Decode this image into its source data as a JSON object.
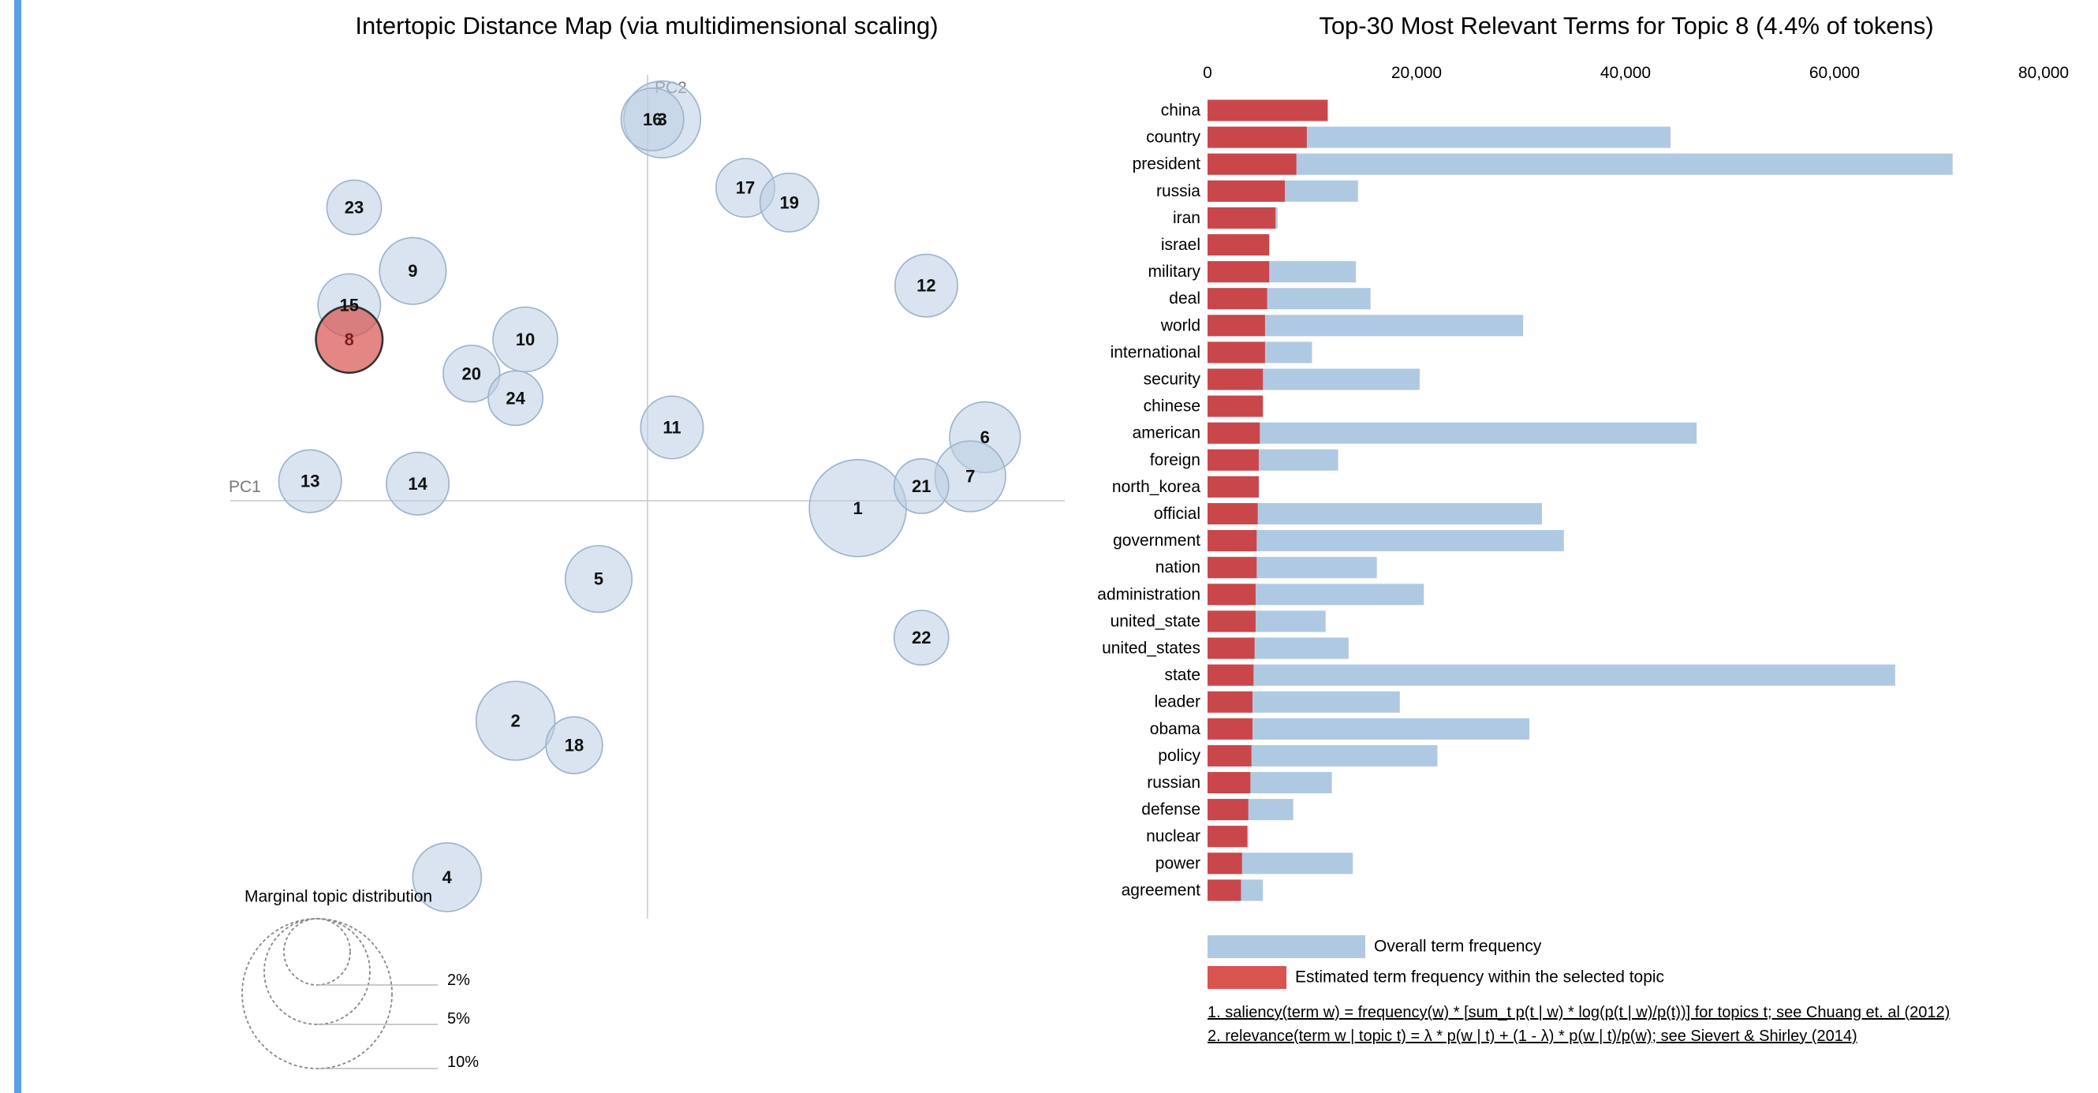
{
  "chart_data": [
    {
      "type": "scatter",
      "title": "Intertopic Distance Map (via multidimensional scaling)",
      "xlabel": "PC1",
      "ylabel": "PC2",
      "selected_topic": 8,
      "topics": [
        {
          "id": 1,
          "x": 4.3,
          "y": -0.15,
          "size": 4.8
        },
        {
          "id": 2,
          "x": -2.7,
          "y": -4.5,
          "size": 3.9
        },
        {
          "id": 3,
          "x": 0.3,
          "y": 7.8,
          "size": 3.8
        },
        {
          "id": 4,
          "x": -4.1,
          "y": -7.7,
          "size": 3.4
        },
        {
          "id": 5,
          "x": -1.0,
          "y": -1.6,
          "size": 3.3
        },
        {
          "id": 6,
          "x": 6.9,
          "y": 1.3,
          "size": 3.5
        },
        {
          "id": 7,
          "x": 6.6,
          "y": 0.5,
          "size": 3.5
        },
        {
          "id": 8,
          "x": -6.1,
          "y": 3.3,
          "size": 3.3
        },
        {
          "id": 9,
          "x": -4.8,
          "y": 4.7,
          "size": 3.3
        },
        {
          "id": 10,
          "x": -2.5,
          "y": 3.3,
          "size": 3.2
        },
        {
          "id": 11,
          "x": 0.5,
          "y": 1.5,
          "size": 3.1
        },
        {
          "id": 12,
          "x": 5.7,
          "y": 4.4,
          "size": 3.1
        },
        {
          "id": 13,
          "x": -6.9,
          "y": 0.4,
          "size": 3.1
        },
        {
          "id": 14,
          "x": -4.7,
          "y": 0.35,
          "size": 3.1
        },
        {
          "id": 15,
          "x": -6.1,
          "y": 4.0,
          "size": 3.1
        },
        {
          "id": 16,
          "x": 0.1,
          "y": 7.8,
          "size": 3.1
        },
        {
          "id": 17,
          "x": 2.0,
          "y": 6.4,
          "size": 2.9
        },
        {
          "id": 18,
          "x": -1.5,
          "y": -5.0,
          "size": 2.8
        },
        {
          "id": 19,
          "x": 2.9,
          "y": 6.1,
          "size": 2.9
        },
        {
          "id": 20,
          "x": -3.6,
          "y": 2.6,
          "size": 2.8
        },
        {
          "id": 21,
          "x": 5.6,
          "y": 0.3,
          "size": 2.7
        },
        {
          "id": 22,
          "x": 5.6,
          "y": -2.8,
          "size": 2.7
        },
        {
          "id": 23,
          "x": -6.0,
          "y": 6.0,
          "size": 2.7
        },
        {
          "id": 24,
          "x": -2.7,
          "y": 2.1,
          "size": 2.7
        }
      ],
      "xlim": [
        -8.7,
        8.7
      ],
      "ylim": [
        -8.7,
        8.7
      ],
      "legend": {
        "title": "Marginal topic distribution",
        "entries": [
          "2%",
          "5%",
          "10%"
        ]
      }
    },
    {
      "type": "bar",
      "orientation": "horizontal",
      "title": "Top-30 Most Relevant Terms for Topic 8 (4.4% of tokens)",
      "xlim": [
        0,
        80000
      ],
      "ticks": [
        "0",
        "20,000",
        "40,000",
        "60,000",
        "80,000"
      ],
      "categories": [
        "china",
        "country",
        "president",
        "russia",
        "iran",
        "israel",
        "military",
        "deal",
        "world",
        "international",
        "security",
        "chinese",
        "american",
        "foreign",
        "north_korea",
        "official",
        "government",
        "nation",
        "administration",
        "united_state",
        "united_states",
        "state",
        "leader",
        "obama",
        "policy",
        "russian",
        "defense",
        "nuclear",
        "power",
        "agreement"
      ],
      "series": [
        {
          "name": "Overall term frequency",
          "values": [
            11500,
            44300,
            71300,
            14400,
            6700,
            5900,
            14200,
            15600,
            30200,
            10000,
            20300,
            5300,
            46800,
            12500,
            4900,
            32000,
            34100,
            16200,
            20700,
            11300,
            13500,
            65800,
            18400,
            30800,
            22000,
            11900,
            8200,
            3900,
            13900,
            5300
          ]
        },
        {
          "name": "Estimated term frequency within the selected topic",
          "values": [
            11500,
            9500,
            8500,
            7400,
            6500,
            5900,
            5900,
            5700,
            5500,
            5500,
            5300,
            5300,
            5000,
            4900,
            4900,
            4800,
            4700,
            4700,
            4600,
            4600,
            4500,
            4400,
            4300,
            4300,
            4200,
            4100,
            3900,
            3800,
            3300,
            3200
          ]
        }
      ],
      "legend": [
        "Overall term frequency",
        "Estimated term frequency within the selected topic"
      ],
      "footnotes": [
        "1. saliency(term w) = frequency(w) * [sum_t p(t | w) * log(p(t | w)/p(t))] for topics t; see Chuang et. al (2012)",
        "2. relevance(term w | topic t) = λ * p(w | t) + (1 - λ) * p(w | t)/p(w); see Sievert & Shirley (2014)"
      ]
    }
  ],
  "colors": {
    "overall": "#b0c9e2",
    "topic": "#c9474a",
    "accent": "#5aa0e6"
  }
}
